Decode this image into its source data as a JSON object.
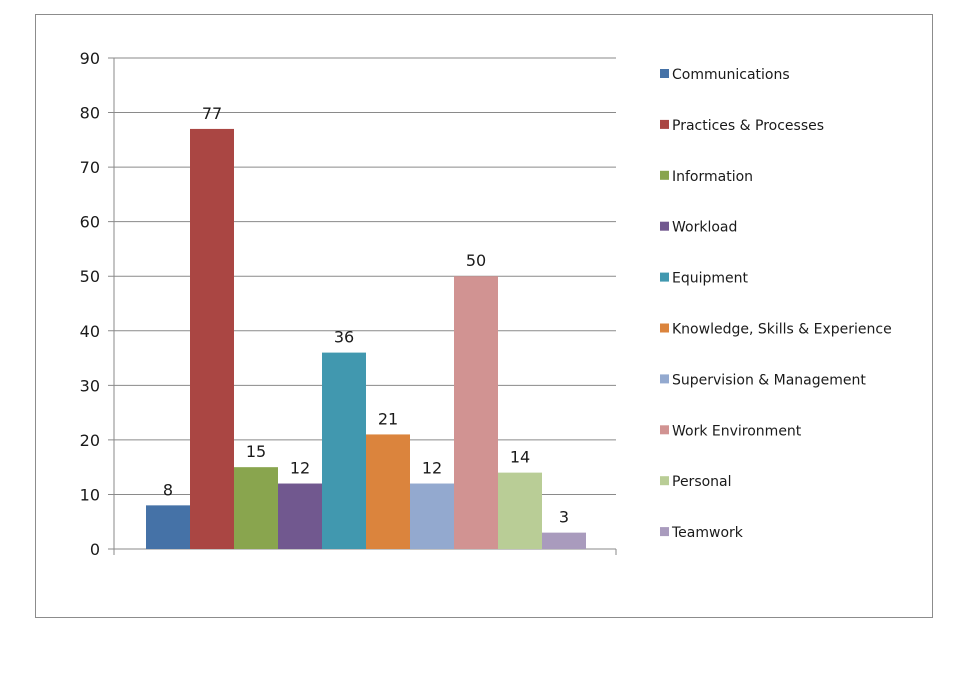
{
  "chart_data": {
    "type": "bar",
    "title": "",
    "xlabel": "",
    "ylabel": "",
    "ylim": [
      0,
      90
    ],
    "yticks": [
      0,
      10,
      20,
      30,
      40,
      50,
      60,
      70,
      80,
      90
    ],
    "grid": true,
    "legend_position": "right",
    "categories": [
      ""
    ],
    "series": [
      {
        "name": "Communications",
        "value": 8,
        "color": "#4572a7"
      },
      {
        "name": "Practices & Processes",
        "value": 77,
        "color": "#aa4643"
      },
      {
        "name": "Information",
        "value": 15,
        "color": "#89a54e"
      },
      {
        "name": "Workload",
        "value": 12,
        "color": "#71588f"
      },
      {
        "name": "Equipment",
        "value": 36,
        "color": "#4198af"
      },
      {
        "name": "Knowledge, Skills & Experience",
        "value": 21,
        "color": "#db843d"
      },
      {
        "name": "Supervision & Management",
        "value": 12,
        "color": "#93a9cf"
      },
      {
        "name": "Work Environment",
        "value": 50,
        "color": "#d19392"
      },
      {
        "name": "Personal",
        "value": 14,
        "color": "#b9cd96"
      },
      {
        "name": "Teamwork",
        "value": 3,
        "color": "#a99bbd"
      }
    ]
  }
}
